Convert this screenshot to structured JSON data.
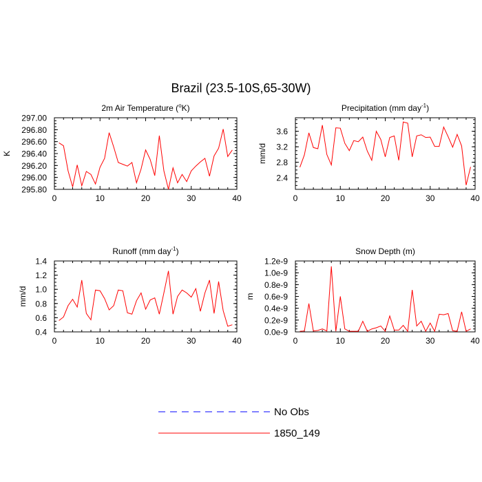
{
  "figure_title": "Brazil (23.5-10S,65-30W)",
  "legend": {
    "entries": [
      {
        "label": "No Obs",
        "color": "#0000ff",
        "style": "dashed"
      },
      {
        "label": "1850_149",
        "color": "#ff0000",
        "style": "solid"
      }
    ]
  },
  "chart_data": [
    {
      "type": "line",
      "title": "2m Air Temperature (oK)",
      "title_html": [
        "2m Air Temperature (",
        "o",
        "K)"
      ],
      "xlabel": "",
      "ylabel": "K",
      "xlim": [
        0,
        40
      ],
      "ylim": [
        295.8,
        297.0
      ],
      "xticks": [
        0,
        10,
        20,
        30,
        40
      ],
      "yticks": [
        295.8,
        296.0,
        296.2,
        296.4,
        296.6,
        296.8,
        297.0
      ],
      "ytick_labels": [
        "295.80",
        "296.00",
        "296.20",
        "296.40",
        "296.60",
        "296.80",
        "297.00"
      ],
      "series": [
        {
          "name": "1850_149",
          "color": "#ff0000",
          "x": [
            1,
            2,
            3,
            4,
            5,
            6,
            7,
            8,
            9,
            10,
            11,
            12,
            13,
            14,
            15,
            16,
            17,
            18,
            19,
            20,
            21,
            22,
            23,
            24,
            25,
            26,
            27,
            28,
            29,
            30,
            31,
            32,
            33,
            34,
            35,
            36,
            37,
            38,
            39
          ],
          "values": [
            296.58,
            296.53,
            296.11,
            295.84,
            296.21,
            295.86,
            296.1,
            296.05,
            295.89,
            296.17,
            296.32,
            296.75,
            296.51,
            296.25,
            296.22,
            296.19,
            296.25,
            295.91,
            296.14,
            296.46,
            296.3,
            296.03,
            296.7,
            296.11,
            295.8,
            296.16,
            295.91,
            296.05,
            295.93,
            296.11,
            296.19,
            296.26,
            296.32,
            296.02,
            296.36,
            296.49,
            296.81,
            296.35,
            296.46
          ]
        }
      ]
    },
    {
      "type": "line",
      "title": "Precipitation (mm day-1)",
      "title_html": [
        "Precipitation (mm day",
        "-1",
        ")"
      ],
      "xlabel": "",
      "ylabel": "mm/d",
      "xlim": [
        0,
        40
      ],
      "ylim": [
        2.1,
        3.95
      ],
      "xticks": [
        0,
        10,
        20,
        30,
        40
      ],
      "yticks": [
        2.4,
        2.8,
        3.2,
        3.6
      ],
      "ytick_labels": [
        "2.4",
        "2.8",
        "3.2",
        "3.6"
      ],
      "series": [
        {
          "name": "1850_149",
          "color": "#ff0000",
          "x": [
            1,
            2,
            3,
            4,
            5,
            6,
            7,
            8,
            9,
            10,
            11,
            12,
            13,
            14,
            15,
            16,
            17,
            18,
            19,
            20,
            21,
            22,
            23,
            24,
            25,
            26,
            27,
            28,
            29,
            30,
            31,
            32,
            33,
            34,
            35,
            36,
            37,
            38,
            39
          ],
          "values": [
            2.67,
            2.99,
            3.56,
            3.18,
            3.15,
            3.76,
            3.0,
            2.73,
            3.69,
            3.68,
            3.29,
            3.1,
            3.36,
            3.33,
            3.45,
            3.09,
            2.85,
            3.6,
            3.39,
            2.94,
            3.44,
            3.48,
            2.85,
            3.84,
            3.81,
            2.94,
            3.48,
            3.51,
            3.44,
            3.45,
            3.21,
            3.21,
            3.71,
            3.46,
            3.19,
            3.52,
            3.22,
            2.21,
            2.68
          ]
        }
      ]
    },
    {
      "type": "line",
      "title": "Runoff (mm day-1)",
      "title_html": [
        "Runoff (mm day",
        "-1",
        ")"
      ],
      "xlabel": "",
      "ylabel": "mm/d",
      "xlim": [
        0,
        40
      ],
      "ylim": [
        0.4,
        1.4
      ],
      "xticks": [
        0,
        10,
        20,
        30,
        40
      ],
      "yticks": [
        0.4,
        0.6,
        0.8,
        1.0,
        1.2,
        1.4
      ],
      "ytick_labels": [
        "0.4",
        "0.6",
        "0.8",
        "1.0",
        "1.2",
        "1.4"
      ],
      "series": [
        {
          "name": "1850_149",
          "color": "#ff0000",
          "x": [
            1,
            2,
            3,
            4,
            5,
            6,
            7,
            8,
            9,
            10,
            11,
            12,
            13,
            14,
            15,
            16,
            17,
            18,
            19,
            20,
            21,
            22,
            23,
            24,
            25,
            26,
            27,
            28,
            29,
            30,
            31,
            32,
            33,
            34,
            35,
            36,
            37,
            38,
            39
          ],
          "values": [
            0.56,
            0.61,
            0.77,
            0.86,
            0.75,
            1.13,
            0.66,
            0.57,
            0.99,
            0.98,
            0.87,
            0.71,
            0.77,
            0.99,
            0.98,
            0.67,
            0.65,
            0.84,
            0.95,
            0.72,
            0.85,
            0.88,
            0.65,
            0.95,
            1.26,
            0.65,
            0.9,
            0.99,
            0.95,
            0.89,
            1.01,
            0.69,
            0.95,
            1.13,
            0.66,
            1.11,
            0.7,
            0.48,
            0.5
          ]
        }
      ]
    },
    {
      "type": "line",
      "title": "Snow Depth (m)",
      "title_html": [
        "Snow Depth (m)",
        "",
        ""
      ],
      "xlabel": "",
      "ylabel": "m",
      "xlim": [
        0,
        40
      ],
      "ylim": [
        0,
        1.2e-09
      ],
      "xticks": [
        0,
        10,
        20,
        30,
        40
      ],
      "yticks": [
        0,
        2e-10,
        4e-10,
        6e-10,
        8e-10,
        1e-09,
        1.2e-09
      ],
      "ytick_labels": [
        "0.0e-9",
        "0.2e-9",
        "0.4e-9",
        "0.6e-9",
        "0.8e-9",
        "1.0e-9",
        "1.2e-9"
      ],
      "series": [
        {
          "name": "1850_149",
          "color": "#ff0000",
          "x": [
            1,
            2,
            3,
            4,
            5,
            6,
            7,
            8,
            9,
            10,
            11,
            12,
            13,
            14,
            15,
            16,
            17,
            18,
            19,
            20,
            21,
            22,
            23,
            24,
            25,
            26,
            27,
            28,
            29,
            30,
            31,
            32,
            33,
            34,
            35,
            36,
            37,
            38,
            39
          ],
          "values": [
            1e-11,
            1.5e-11,
            4.8e-10,
            1.5e-11,
            2.5e-11,
            5e-11,
            1.5e-11,
            1.11e-09,
            1e-11,
            6e-10,
            5e-11,
            1e-11,
            1e-11,
            1e-11,
            1.8e-10,
            1e-11,
            5e-11,
            7e-11,
            1e-10,
            1e-11,
            2.7e-10,
            3e-11,
            3e-11,
            1.1e-10,
            1e-11,
            7.1e-10,
            1e-10,
            1.8e-10,
            1e-11,
            1.5e-10,
            1e-11,
            3e-10,
            2.9e-10,
            3.1e-10,
            2e-11,
            1e-11,
            3.4e-10,
            1e-11,
            5e-11
          ]
        }
      ]
    }
  ]
}
